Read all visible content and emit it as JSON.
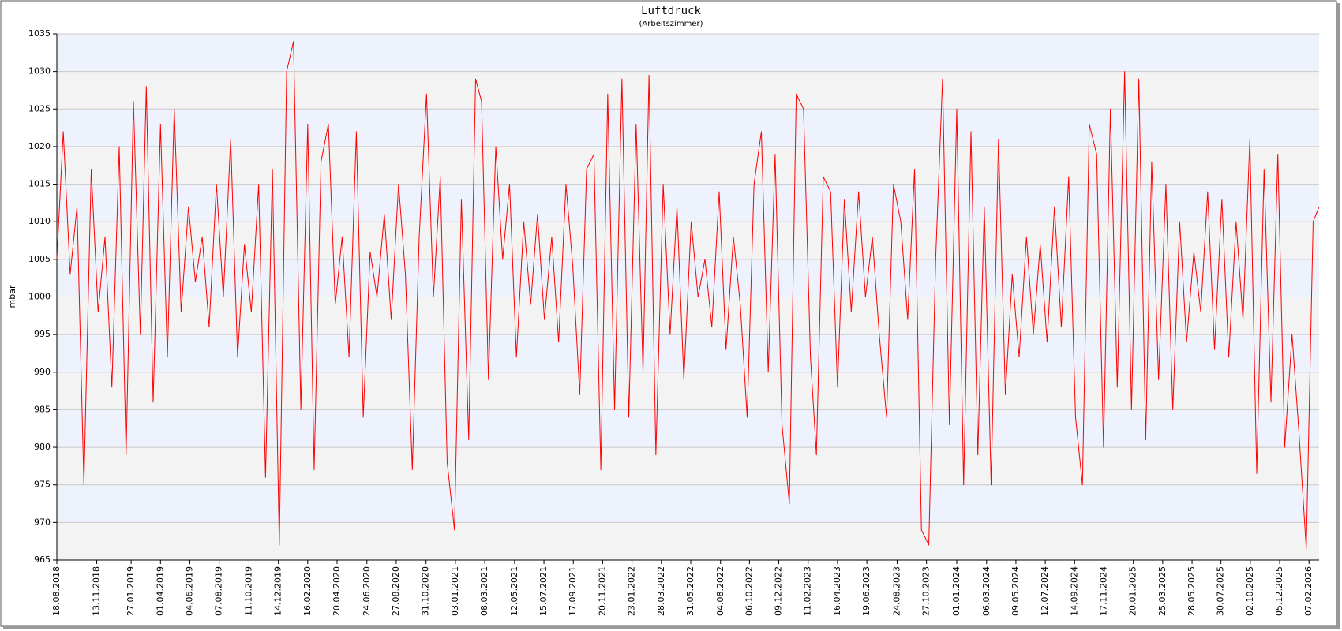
{
  "chart_data": {
    "type": "line",
    "title": "Luftdruck",
    "subtitle": "(Arbeitszimmer)",
    "y_label": "mbar",
    "ylim": [
      965,
      1035
    ],
    "yticks": [
      965,
      970,
      975,
      980,
      985,
      990,
      995,
      1000,
      1005,
      1010,
      1015,
      1020,
      1025,
      1030,
      1035
    ],
    "xlim": [
      "18.08.2018",
      "01.03.2026"
    ],
    "xticks": [
      "18.08.2018",
      "13.11.2018",
      "27.01.2019",
      "01.04.2019",
      "04.06.2019",
      "07.08.2019",
      "11.10.2019",
      "14.12.2019",
      "16.02.2020",
      "20.04.2020",
      "24.06.2020",
      "27.08.2020",
      "31.10.2020",
      "03.01.2021",
      "08.03.2021",
      "12.05.2021",
      "15.07.2021",
      "17.09.2021",
      "20.11.2021",
      "23.01.2022",
      "28.03.2022",
      "31.05.2022",
      "04.08.2022",
      "06.10.2022",
      "09.12.2022",
      "11.02.2023",
      "16.04.2023",
      "19.06.2023",
      "24.08.2023",
      "27.10.2023",
      "01.01.2024",
      "06.03.2024",
      "09.05.2024",
      "12.07.2024",
      "14.09.2024",
      "17.11.2024",
      "20.01.2025",
      "25.03.2025",
      "28.05.2025",
      "30.07.2025",
      "02.10.2025",
      "05.12.2025",
      "07.02.2026"
    ],
    "grid": true,
    "band_colors": [
      "#f3f3f3",
      "#eef2fc"
    ],
    "x": [
      "18.08.2018",
      "01.09.2018",
      "16.09.2018",
      "01.10.2018",
      "16.10.2018",
      "01.11.2018",
      "16.11.2018",
      "01.12.2018",
      "16.12.2018",
      "01.01.2019",
      "16.01.2019",
      "01.02.2019",
      "16.02.2019",
      "01.03.2019",
      "16.03.2019",
      "01.04.2019",
      "16.04.2019",
      "01.05.2019",
      "16.05.2019",
      "01.06.2019",
      "16.06.2019",
      "01.07.2019",
      "16.07.2019",
      "01.08.2019",
      "16.08.2019",
      "01.09.2019",
      "16.09.2019",
      "01.10.2019",
      "16.10.2019",
      "01.11.2019",
      "16.11.2019",
      "01.12.2019",
      "16.12.2019",
      "01.01.2020",
      "16.01.2020",
      "01.02.2020",
      "16.02.2020",
      "01.03.2020",
      "16.03.2020",
      "01.04.2020",
      "16.04.2020",
      "01.05.2020",
      "16.05.2020",
      "01.06.2020",
      "16.06.2020",
      "01.07.2020",
      "16.07.2020",
      "01.08.2020",
      "16.08.2020",
      "01.09.2020",
      "16.09.2020",
      "01.10.2020",
      "16.10.2020",
      "01.11.2020",
      "16.11.2020",
      "01.12.2020",
      "16.12.2020",
      "01.01.2021",
      "16.01.2021",
      "01.02.2021",
      "16.02.2021",
      "01.03.2021",
      "16.03.2021",
      "01.04.2021",
      "16.04.2021",
      "01.05.2021",
      "16.05.2021",
      "01.06.2021",
      "16.06.2021",
      "01.07.2021",
      "16.07.2021",
      "01.08.2021",
      "16.08.2021",
      "01.09.2021",
      "16.09.2021",
      "01.10.2021",
      "16.10.2021",
      "01.11.2021",
      "16.11.2021",
      "01.12.2021",
      "16.12.2021",
      "01.01.2022",
      "16.01.2022",
      "01.02.2022",
      "16.02.2022",
      "01.03.2022",
      "16.03.2022",
      "01.04.2022",
      "16.04.2022",
      "01.05.2022",
      "16.05.2022",
      "01.06.2022",
      "16.06.2022",
      "01.07.2022",
      "16.07.2022",
      "01.08.2022",
      "16.08.2022",
      "01.09.2022",
      "16.09.2022",
      "01.10.2022",
      "16.10.2022",
      "01.11.2022",
      "16.11.2022",
      "01.12.2022",
      "16.12.2022",
      "01.01.2023",
      "16.01.2023",
      "01.02.2023",
      "16.02.2023",
      "01.03.2023",
      "16.03.2023",
      "01.04.2023",
      "16.04.2023",
      "01.05.2023",
      "16.05.2023",
      "01.06.2023",
      "16.06.2023",
      "01.07.2023",
      "16.07.2023",
      "01.08.2023",
      "16.08.2023",
      "01.09.2023",
      "16.09.2023",
      "01.10.2023",
      "16.10.2023",
      "01.11.2023",
      "16.11.2023",
      "01.12.2023",
      "16.12.2023",
      "01.01.2024",
      "16.01.2024",
      "01.02.2024",
      "16.02.2024",
      "01.03.2024",
      "16.03.2024",
      "01.04.2024",
      "16.04.2024",
      "01.05.2024",
      "16.05.2024",
      "01.06.2024",
      "16.06.2024",
      "01.07.2024",
      "16.07.2024",
      "01.08.2024",
      "16.08.2024",
      "01.09.2024",
      "16.09.2024",
      "01.10.2024",
      "16.10.2024",
      "01.11.2024",
      "16.11.2024",
      "01.12.2024",
      "16.12.2024",
      "01.01.2025",
      "16.01.2025",
      "01.02.2025",
      "16.02.2025",
      "01.03.2025",
      "16.03.2025",
      "01.04.2025",
      "16.04.2025",
      "01.05.2025",
      "16.05.2025",
      "01.06.2025",
      "16.06.2025",
      "01.07.2025",
      "16.07.2025",
      "01.08.2025",
      "16.08.2025",
      "01.09.2025",
      "16.09.2025",
      "01.10.2025",
      "16.10.2025",
      "01.11.2025",
      "16.11.2025",
      "01.12.2025",
      "16.12.2025",
      "01.01.2026",
      "16.01.2026",
      "01.02.2026",
      "16.02.2026",
      "01.03.2026"
    ],
    "series": [
      {
        "name": "Luftdruck",
        "color": "#ff0000",
        "values": [
          1005,
          1022,
          1003,
          1012,
          975,
          1017,
          998,
          1008,
          988,
          1020,
          979,
          1026,
          995,
          1028,
          986,
          1023,
          992,
          1025,
          998,
          1012,
          1002,
          1008,
          996,
          1015,
          1000,
          1021,
          992,
          1007,
          998,
          1015,
          976,
          1017,
          967,
          1030,
          1034,
          985,
          1023,
          977,
          1018,
          1023,
          999,
          1008,
          992,
          1022,
          984,
          1006,
          1000,
          1011,
          997,
          1015,
          1003,
          977,
          1008,
          1027,
          1000,
          1016,
          978,
          969,
          1013,
          981,
          1029,
          1026,
          989,
          1020,
          1005,
          1015,
          992,
          1010,
          999,
          1011,
          997,
          1008,
          994,
          1015,
          1004,
          987,
          1017,
          1019,
          977,
          1027,
          985,
          1029,
          984,
          1023,
          990,
          1029.5,
          979,
          1015,
          995,
          1012,
          989,
          1010,
          1000,
          1005,
          996,
          1014,
          993,
          1008,
          999,
          984,
          1015,
          1022,
          990,
          1019,
          983,
          972.5,
          1027,
          1025,
          992,
          979,
          1016,
          1014,
          988,
          1013,
          998,
          1014,
          1000,
          1008,
          995,
          984,
          1015,
          1010,
          997,
          1017,
          969,
          967,
          1005,
          1029,
          983,
          1025,
          975,
          1022,
          979,
          1012,
          975,
          1021,
          987,
          1003,
          992,
          1008,
          995,
          1007,
          994,
          1012,
          996,
          1016,
          984,
          975,
          1023,
          1019,
          980,
          1025,
          988,
          1030,
          985,
          1029,
          981,
          1018,
          989,
          1015,
          985,
          1010,
          994,
          1006,
          998,
          1014,
          993,
          1013,
          992,
          1010,
          997,
          1021,
          976.5,
          1017,
          986,
          1019,
          980,
          995,
          982,
          966.5,
          1010,
          1012
        ]
      }
    ]
  }
}
